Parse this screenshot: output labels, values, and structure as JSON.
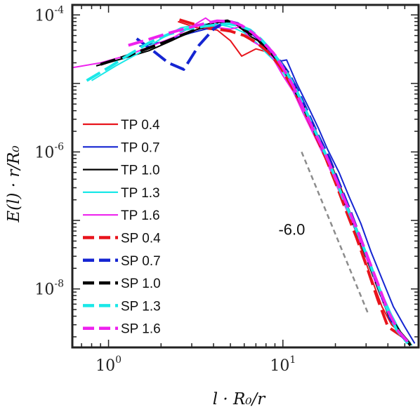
{
  "chart_data": {
    "type": "line",
    "log_x": true,
    "log_y": true,
    "xlim": [
      0.62,
      60
    ],
    "ylim": [
      1.4e-09,
      0.00014
    ],
    "xticks": [
      {
        "value": 1,
        "base": "10",
        "exp": "0"
      },
      {
        "value": 10,
        "base": "10",
        "exp": "1"
      }
    ],
    "yticks": [
      {
        "value": 1e-08,
        "base": "10",
        "exp": "-8"
      },
      {
        "value": 1e-06,
        "base": "10",
        "exp": "-6"
      },
      {
        "value": 0.0001,
        "base": "10",
        "exp": "-4"
      }
    ],
    "xlabel": "l · R₀/r",
    "ylabel": "E(l) · r/R₀",
    "grid": false,
    "legend_position": "left-middle",
    "series": [
      {
        "name": "TP 0.4",
        "style": "solid",
        "color": "#e8141c",
        "x": [
          2.5,
          3.2,
          4.2,
          5.0,
          5.8,
          7.0,
          8.0,
          9.5,
          11,
          13,
          15,
          17,
          19.5,
          22,
          25,
          28,
          32,
          37,
          42,
          48,
          55
        ],
        "y": [
          8e-05,
          6.5e-05,
          6e-05,
          4.2e-05,
          2.5e-05,
          3.2e-05,
          2.9e-05,
          2e-05,
          1.1e-05,
          5e-06,
          2.5e-06,
          1.1e-06,
          5.5e-07,
          2.6e-07,
          1e-07,
          4e-08,
          1.5e-08,
          5.5e-09,
          3e-09,
          2.2e-09,
          1.5e-09
        ]
      },
      {
        "name": "TP 0.7",
        "style": "solid",
        "color": "#1525d2",
        "x": [
          1.5,
          2.0,
          2.5,
          3.0,
          3.6,
          4.2,
          5.0,
          5.7,
          6.5,
          7.5,
          8.5,
          9.5,
          10.5,
          12,
          14,
          16,
          18,
          21,
          24,
          28,
          32,
          37,
          43,
          50,
          57
        ],
        "y": [
          3.5e-05,
          4e-05,
          4.8e-05,
          5.5e-05,
          6.2e-05,
          7e-05,
          7.7e-05,
          6.8e-05,
          5.5e-05,
          4e-05,
          2.6e-05,
          2.1e-05,
          2.2e-05,
          1e-05,
          4.5e-06,
          2.2e-06,
          1.1e-06,
          5e-07,
          2.2e-07,
          9e-08,
          3.5e-08,
          1.4e-08,
          5.5e-09,
          2.8e-09,
          1.6e-09
        ]
      },
      {
        "name": "TP 1.0",
        "style": "solid",
        "color": "#000000",
        "x": [
          0.85,
          1.2,
          1.7,
          2.3,
          3.0,
          3.7,
          4.3,
          5.0,
          5.6,
          6.4,
          7.2,
          8.2,
          9.3,
          10.5,
          12,
          14,
          16,
          18.5,
          21,
          24,
          27.5,
          31.5,
          36,
          41,
          47,
          54
        ],
        "y": [
          1.8e-05,
          2.3e-05,
          3e-05,
          4.2e-05,
          5.8e-05,
          6.8e-05,
          7.8e-05,
          8e-05,
          6.8e-05,
          5e-05,
          4.2e-05,
          2.8e-05,
          2.2e-05,
          1.3e-05,
          6.5e-06,
          3e-06,
          1.5e-06,
          7e-07,
          3.2e-07,
          1.4e-07,
          6e-08,
          2.5e-08,
          1e-08,
          4.5e-09,
          2.4e-09,
          1.6e-09
        ]
      },
      {
        "name": "TP 1.3",
        "style": "solid",
        "color": "#1ae8e8",
        "x": [
          0.8,
          1.1,
          1.5,
          2.0,
          2.6,
          3.3,
          4.0,
          4.6,
          5.2,
          6.0,
          7.0,
          8.0,
          9.2,
          10.5,
          12,
          13.5,
          15.5,
          18,
          20.5,
          23.5,
          27,
          31,
          36,
          42,
          48,
          55
        ],
        "y": [
          1.1e-05,
          1.8e-05,
          2.8e-05,
          4.5e-05,
          6.5e-05,
          7.2e-05,
          7.5e-05,
          7e-05,
          6.5e-05,
          5.5e-05,
          4e-05,
          2.8e-05,
          2e-05,
          1.2e-05,
          6e-06,
          3.2e-06,
          1.6e-06,
          7.5e-07,
          3.2e-07,
          1.4e-07,
          6e-08,
          2.4e-08,
          1e-08,
          4.2e-09,
          2.2e-09,
          1.5e-09
        ]
      },
      {
        "name": "TP 1.6",
        "style": "solid",
        "color": "#ee22ee",
        "x": [
          0.62,
          0.9,
          1.3,
          1.8,
          2.4,
          3.0,
          3.6,
          4.3,
          5.0,
          5.8,
          6.6,
          7.6,
          8.7,
          10.0,
          11.5,
          13,
          15,
          17.5,
          20,
          23,
          26.5,
          30.5,
          35,
          40,
          46,
          53
        ],
        "y": [
          1.7e-05,
          2e-05,
          2.6e-05,
          3.6e-05,
          4.8e-05,
          6.8e-05,
          9e-05,
          6.5e-05,
          6.2e-05,
          6.8e-05,
          4.2e-05,
          3.4e-05,
          2.4e-05,
          1.3e-05,
          7.5e-06,
          3.8e-06,
          1.8e-06,
          8e-07,
          3.6e-07,
          1.5e-07,
          6.5e-08,
          2.6e-08,
          1e-08,
          4.3e-09,
          2.3e-09,
          1.6e-09
        ]
      },
      {
        "name": "SP 0.4",
        "style": "dashed",
        "color": "#e8141c",
        "x": [
          2.55,
          3.0,
          3.5,
          4.2,
          5.0,
          6.0,
          7.0,
          8.2,
          9.6,
          11,
          13,
          15,
          17.5,
          20,
          23,
          26.5,
          30.5,
          35,
          40,
          46,
          52
        ],
        "y": [
          8.5e-05,
          7.5e-05,
          6.8e-05,
          6.2e-05,
          5.8e-05,
          5e-05,
          4e-05,
          2.9e-05,
          1.8e-05,
          1e-05,
          4.5e-06,
          2e-06,
          8.5e-07,
          3.6e-07,
          1.4e-07,
          5.5e-08,
          2e-08,
          7e-09,
          2.8e-09,
          2.2e-09,
          1.8e-09
        ]
      },
      {
        "name": "SP 0.7",
        "style": "dashed",
        "color": "#1525d2",
        "x": [
          1.45,
          1.8,
          2.2,
          2.7,
          3.3,
          4.0,
          4.8,
          5.5,
          6.3,
          7.2,
          8.2,
          9.4,
          10.8,
          12.3,
          14,
          16,
          18.5,
          21,
          24,
          27.5,
          31.5,
          36,
          41,
          47,
          54
        ],
        "y": [
          4.5e-05,
          3e-05,
          2e-05,
          1.6e-05,
          3.6e-05,
          6.2e-05,
          8.2e-05,
          7.5e-05,
          6e-05,
          4.6e-05,
          3.3e-05,
          2.3e-05,
          1.4e-05,
          7.5e-06,
          3.6e-06,
          1.7e-06,
          8e-07,
          3.5e-07,
          1.5e-07,
          6e-08,
          2.4e-08,
          9.5e-09,
          3.8e-09,
          2.2e-09,
          1.5e-09
        ]
      },
      {
        "name": "SP 1.0",
        "style": "dashed",
        "color": "#000000",
        "x": [
          0.9,
          1.2,
          1.6,
          2.1,
          2.7,
          3.4,
          4.1,
          4.8,
          5.5,
          6.3,
          7.2,
          8.2,
          9.4,
          10.8,
          12.3,
          14,
          16,
          18.5,
          21,
          24,
          27.5,
          31.5,
          36,
          41,
          47,
          54
        ],
        "y": [
          1.9e-05,
          2.4e-05,
          3.1e-05,
          4e-05,
          5.2e-05,
          6.6e-05,
          7.8e-05,
          8.2e-05,
          7e-05,
          5.6e-05,
          4.6e-05,
          3.2e-05,
          2.2e-05,
          1.3e-05,
          6.6e-06,
          3.2e-06,
          1.5e-06,
          7e-07,
          3.1e-07,
          1.3e-07,
          5.5e-08,
          2.2e-08,
          9e-09,
          4e-09,
          2.3e-09,
          1.5e-09
        ]
      },
      {
        "name": "SP 1.3",
        "style": "dashed",
        "color": "#1ae8e8",
        "x": [
          0.75,
          1.0,
          1.3,
          1.7,
          2.2,
          2.8,
          3.5,
          4.2,
          4.9,
          5.6,
          6.5,
          7.5,
          8.6,
          9.8,
          11.2,
          12.8,
          14.6,
          16.8,
          19.3,
          22,
          25.5,
          29.5,
          34,
          39,
          45,
          52
        ],
        "y": [
          1.1e-05,
          1.7e-05,
          2.6e-05,
          3.9e-05,
          5.2e-05,
          6.2e-05,
          6.8e-05,
          7.2e-05,
          7.4e-05,
          7e-05,
          6e-05,
          4.4e-05,
          3e-05,
          1.9e-05,
          1.1e-05,
          5.5e-06,
          2.6e-06,
          1.2e-06,
          5.2e-07,
          2.2e-07,
          9e-08,
          3.6e-08,
          1.4e-08,
          5.5e-09,
          2.5e-09,
          1.6e-09
        ]
      },
      {
        "name": "SP 1.6",
        "style": "dashed",
        "color": "#ee22ee",
        "x": [
          1.3,
          1.7,
          2.2,
          2.8,
          3.5,
          4.2,
          5.0,
          5.8,
          6.7,
          7.7,
          8.8,
          10.0,
          11.5,
          13,
          15,
          17.5,
          20,
          23,
          26.5,
          30.5,
          35,
          40,
          46,
          53
        ],
        "y": [
          3.6e-05,
          4.4e-05,
          5.4e-05,
          6.4e-05,
          7.4e-05,
          8.2e-05,
          8e-05,
          7e-05,
          5.5e-05,
          4e-05,
          2.8e-05,
          1.7e-05,
          9e-06,
          4.5e-06,
          2.1e-06,
          9.5e-07,
          4.2e-07,
          1.8e-07,
          7.5e-08,
          3e-08,
          1.2e-08,
          4.8e-09,
          2.4e-09,
          1.6e-09
        ]
      }
    ],
    "reference_line": {
      "label": "-6.0",
      "color": "#8c8c8c",
      "x": [
        12.8,
        31
      ],
      "y": [
        1e-06,
        4.2e-09
      ]
    }
  }
}
